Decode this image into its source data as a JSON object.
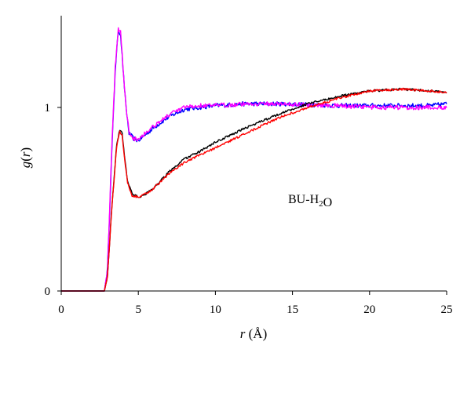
{
  "chart_data": {
    "type": "line",
    "xlabel": "r (Å)",
    "ylabel": "g(r)",
    "xlim": [
      0,
      25
    ],
    "ylim": [
      0,
      1.45
    ],
    "xticks": [
      0,
      5,
      10,
      15,
      20,
      25
    ],
    "yticks": [
      0,
      1
    ],
    "xtick_labels": [
      "0",
      "5",
      "10",
      "15",
      "20",
      "25"
    ],
    "ytick_labels": [
      "0",
      "1"
    ],
    "annotation": "BU-H2O",
    "series": [
      {
        "color": "#0000ff",
        "x": [
          0,
          2.8,
          3.0,
          3.3,
          3.5,
          3.7,
          3.85,
          4.0,
          4.2,
          4.4,
          4.7,
          5.0,
          5.3,
          6.0,
          7.0,
          8.0,
          9.0,
          10.0,
          12.0,
          14.0,
          16.0,
          18.0,
          20.0,
          22.0,
          24.0,
          25.0
        ],
        "y": [
          0,
          0,
          0.12,
          0.8,
          1.2,
          1.42,
          1.4,
          1.22,
          1.0,
          0.86,
          0.83,
          0.82,
          0.84,
          0.89,
          0.95,
          0.99,
          1.0,
          1.01,
          1.02,
          1.02,
          1.015,
          1.01,
          1.01,
          1.01,
          1.01,
          1.02
        ]
      },
      {
        "color": "#ff00ff",
        "x": [
          0,
          2.8,
          3.0,
          3.3,
          3.5,
          3.7,
          3.85,
          4.0,
          4.2,
          4.4,
          4.7,
          5.0,
          5.3,
          6.0,
          7.0,
          8.0,
          9.0,
          10.0,
          12.0,
          14.0,
          16.0,
          18.0,
          20.0,
          22.0,
          24.0,
          25.0
        ],
        "y": [
          0,
          0,
          0.12,
          0.82,
          1.22,
          1.43,
          1.41,
          1.23,
          1.0,
          0.87,
          0.83,
          0.83,
          0.85,
          0.9,
          0.96,
          1.0,
          1.01,
          1.01,
          1.02,
          1.02,
          1.015,
          1.01,
          1.0,
          1.0,
          1.0,
          1.0
        ]
      },
      {
        "color": "#000000",
        "x": [
          0,
          2.8,
          3.0,
          3.3,
          3.6,
          3.8,
          3.95,
          4.1,
          4.3,
          4.6,
          5.0,
          5.5,
          6.0,
          7.0,
          8.0,
          9.0,
          10.0,
          12.0,
          14.0,
          16.0,
          18.0,
          20.0,
          22.0,
          24.0,
          25.0
        ],
        "y": [
          0,
          0,
          0.08,
          0.48,
          0.8,
          0.88,
          0.86,
          0.74,
          0.6,
          0.53,
          0.51,
          0.53,
          0.56,
          0.65,
          0.72,
          0.76,
          0.81,
          0.89,
          0.96,
          1.02,
          1.06,
          1.09,
          1.1,
          1.09,
          1.08
        ]
      },
      {
        "color": "#ff0000",
        "x": [
          0,
          2.8,
          3.0,
          3.3,
          3.6,
          3.8,
          3.95,
          4.1,
          4.3,
          4.6,
          5.0,
          5.5,
          6.0,
          7.0,
          8.0,
          9.0,
          10.0,
          12.0,
          14.0,
          16.0,
          18.0,
          20.0,
          22.0,
          24.0,
          25.0
        ],
        "y": [
          0,
          0,
          0.08,
          0.47,
          0.79,
          0.87,
          0.85,
          0.73,
          0.59,
          0.52,
          0.51,
          0.53,
          0.56,
          0.64,
          0.7,
          0.74,
          0.78,
          0.86,
          0.94,
          1.0,
          1.05,
          1.09,
          1.1,
          1.09,
          1.08
        ]
      }
    ]
  }
}
